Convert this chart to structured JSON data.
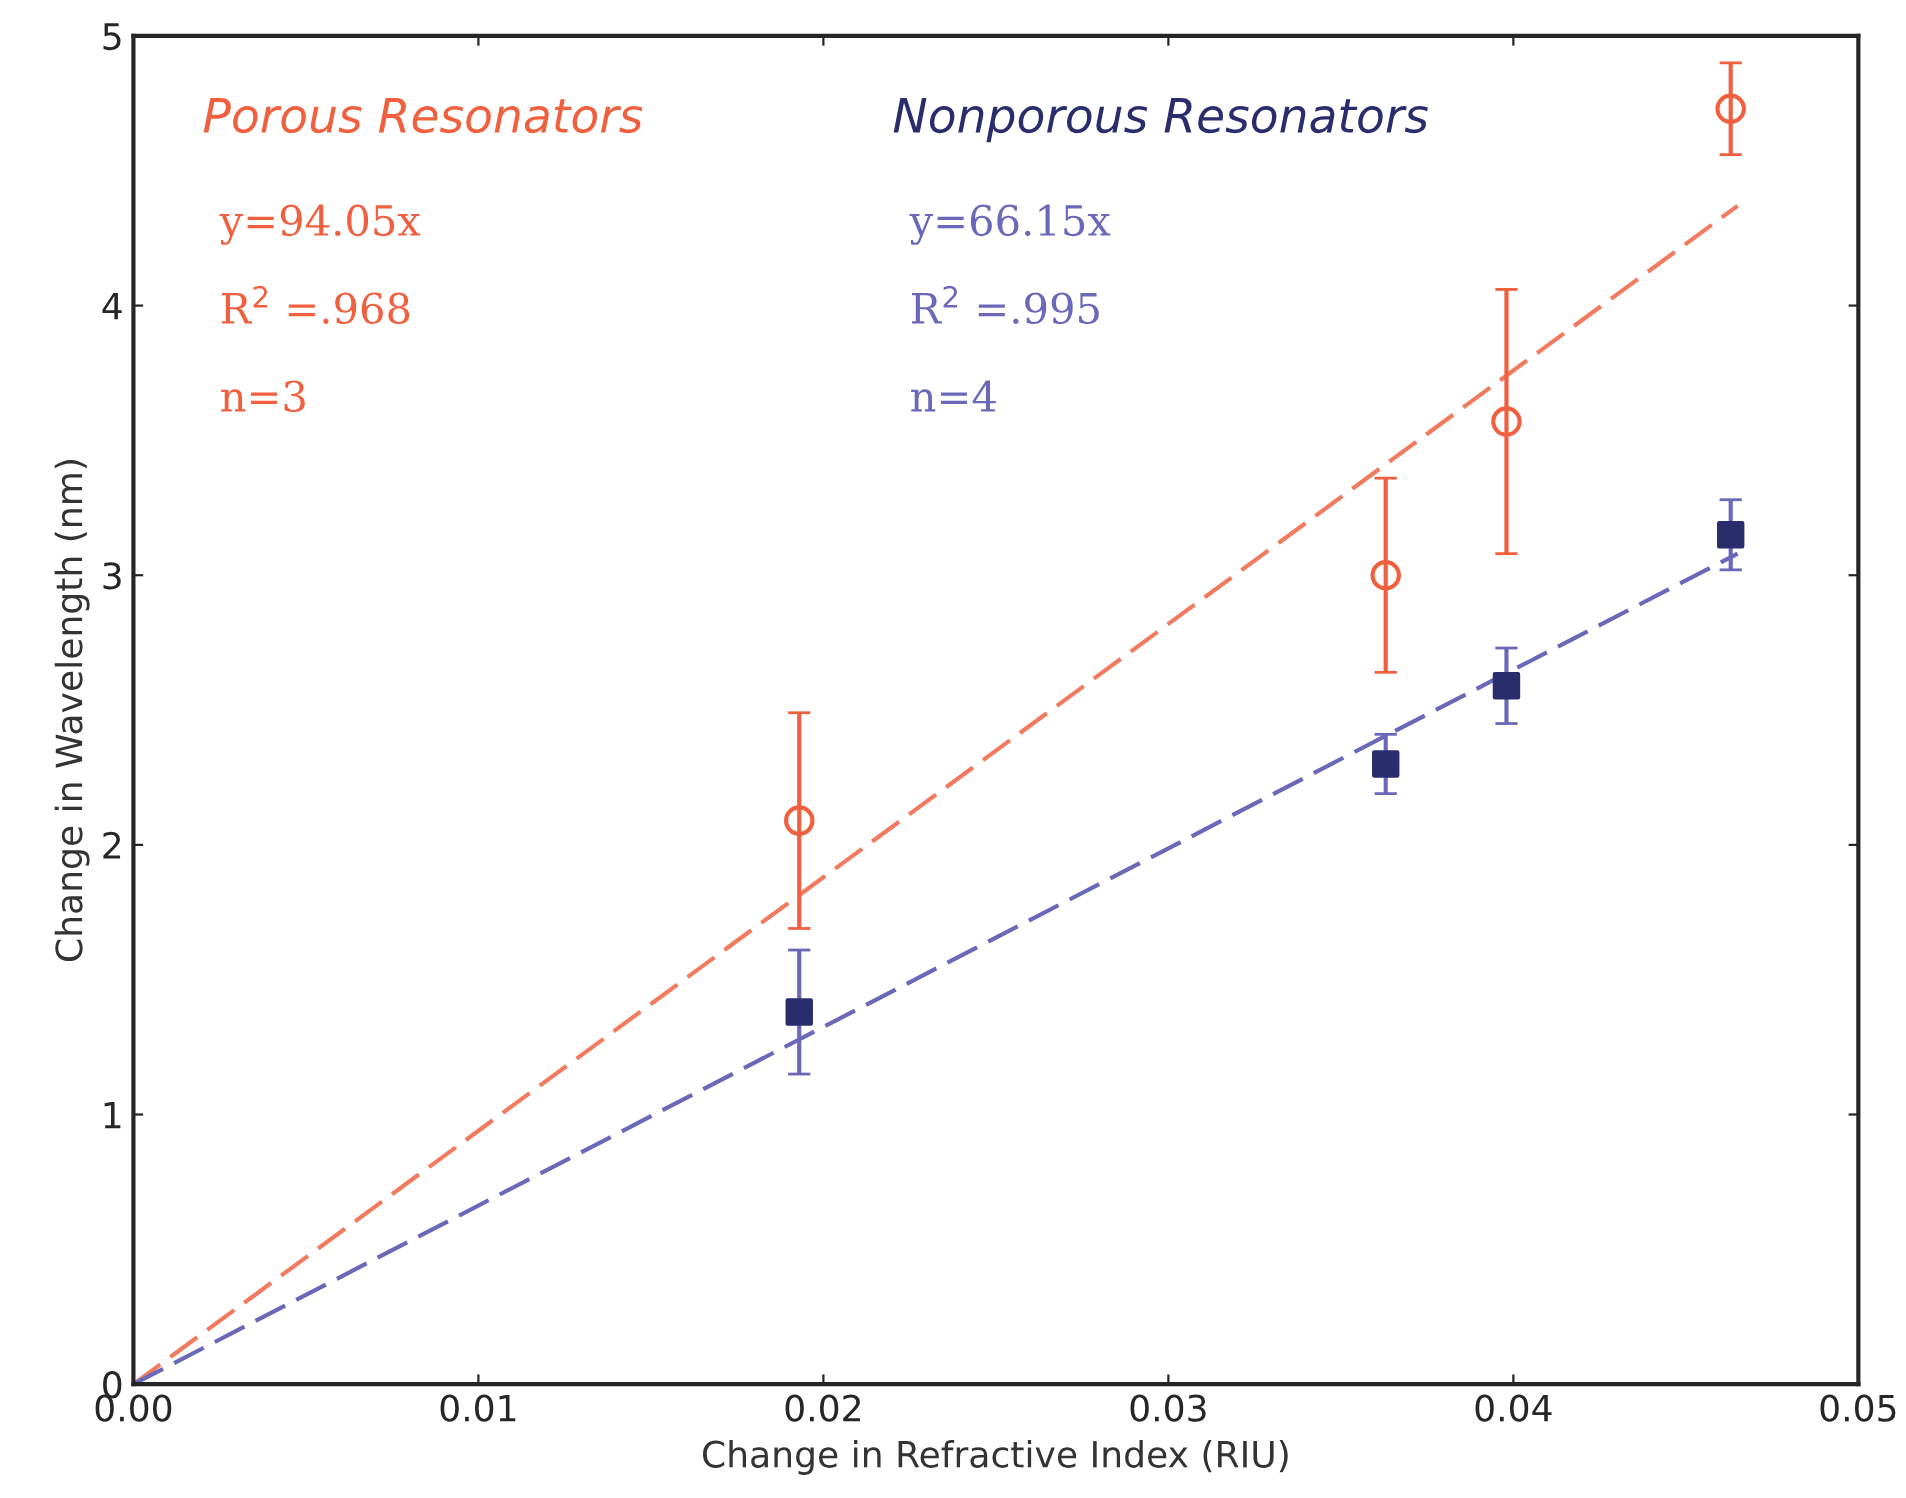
{
  "chart_data": {
    "type": "scatter",
    "xlabel": "Change in Refractive Index (RIU)",
    "ylabel": "Change in Wavelength (nm)",
    "xlim": [
      0,
      0.05
    ],
    "ylim": [
      0,
      5
    ],
    "xticks": [
      {
        "value": 0,
        "label": "0.00"
      },
      {
        "value": 0.01,
        "label": "0.01"
      },
      {
        "value": 0.02,
        "label": "0.02"
      },
      {
        "value": 0.03,
        "label": "0.03"
      },
      {
        "value": 0.04,
        "label": "0.04"
      },
      {
        "value": 0.05,
        "label": "0.05"
      }
    ],
    "yticks": [
      0,
      1,
      2,
      3,
      4,
      5
    ],
    "grid": false,
    "series": [
      {
        "type": "line",
        "color": "#f27a5e",
        "line_style": "dashed",
        "marker": "none",
        "x": [
          0,
          0.0465
        ],
        "values": [
          0,
          4.37
        ]
      },
      {
        "type": "line",
        "color": "#6a68b8",
        "line_style": "dashed",
        "marker": "none",
        "x": [
          0,
          0.0465
        ],
        "values": [
          0,
          3.08
        ]
      },
      {
        "name": "Porous Resonators",
        "color": "#f0603f",
        "marker": "circle",
        "x": [
          0.0193,
          0.0363,
          0.0398,
          0.0463
        ],
        "values": [
          2.09,
          3.0,
          3.57,
          4.73
        ],
        "errors": [
          0.4,
          0.36,
          0.49,
          0.17
        ]
      },
      {
        "name": "Nonporous Resonators",
        "color": "#2a2d6c",
        "marker": "square",
        "x": [
          0.0193,
          0.0363,
          0.0398,
          0.0463
        ],
        "values": [
          1.38,
          2.3,
          2.59,
          3.15
        ],
        "errors": [
          0.23,
          0.11,
          0.14,
          0.13
        ]
      }
    ],
    "annotations": [
      "y=94.05x",
      "R$^{2}$ =.968",
      "n=3",
      "y=66.15x",
      "R$^{2}$ =.995",
      "n=4"
    ]
  }
}
